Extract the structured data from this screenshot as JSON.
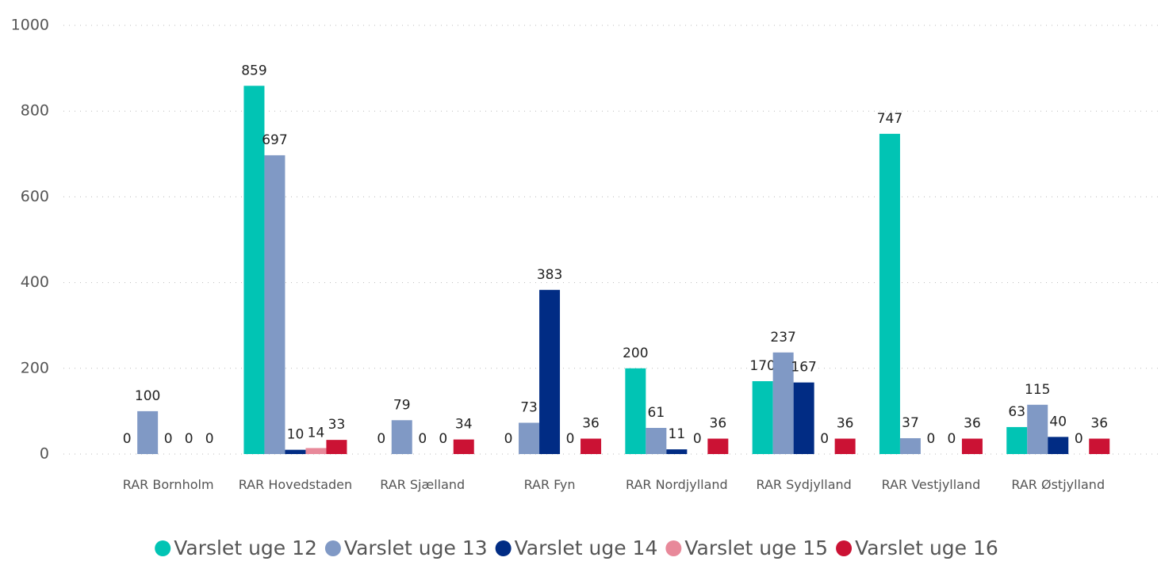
{
  "chart_data": {
    "type": "bar",
    "categories": [
      "RAR Bornholm",
      "RAR Hovedstaden",
      "RAR Sjælland",
      "RAR Fyn",
      "RAR Nordjylland",
      "RAR Sydjylland",
      "RAR Vestjylland",
      "RAR Østjylland"
    ],
    "series": [
      {
        "name": "Varslet uge 12",
        "color": "#01c4b4",
        "values": [
          0,
          859,
          0,
          0,
          200,
          170,
          747,
          63
        ]
      },
      {
        "name": "Varslet uge 13",
        "color": "#8099c5",
        "values": [
          100,
          697,
          79,
          73,
          61,
          237,
          37,
          115
        ]
      },
      {
        "name": "Varslet uge 14",
        "color": "#012c84",
        "values": [
          0,
          10,
          0,
          383,
          11,
          167,
          0,
          40
        ]
      },
      {
        "name": "Varslet uge 15",
        "color": "#e8899a",
        "values": [
          0,
          14,
          0,
          0,
          0,
          0,
          0,
          0
        ]
      },
      {
        "name": "Varslet uge 16",
        "color": "#cb1234",
        "values": [
          0,
          33,
          34,
          36,
          36,
          36,
          36,
          36
        ]
      }
    ],
    "ylim": [
      0,
      1000
    ],
    "yticks": [
      0,
      200,
      400,
      600,
      800,
      1000
    ],
    "grid": true,
    "legend": "bottom"
  }
}
